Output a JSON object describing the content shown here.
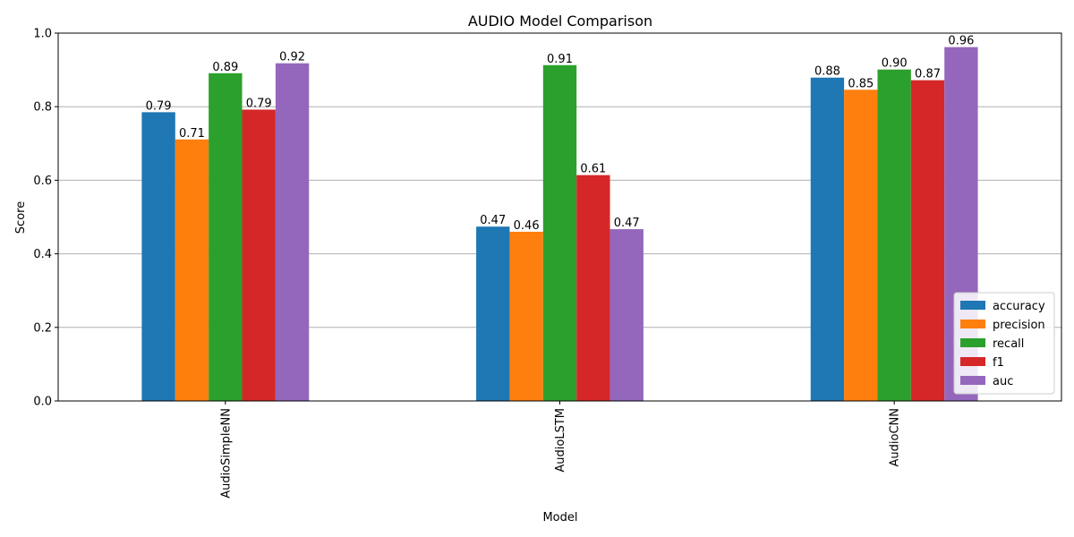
{
  "chart_data": {
    "type": "bar",
    "title": "AUDIO Model Comparison",
    "xlabel": "Model",
    "ylabel": "Score",
    "ylim": [
      0,
      1.0
    ],
    "yticks": [
      "0.0",
      "0.2",
      "0.4",
      "0.6",
      "0.8",
      "1.0"
    ],
    "grid": "y",
    "legend_placement": "lower-right",
    "categories": [
      "AudioSimpleNN",
      "AudioLSTM",
      "AudioCNN"
    ],
    "series": [
      {
        "name": "accuracy",
        "color": "#1f77b4",
        "values": [
          0.785,
          0.474,
          0.879
        ],
        "labels": [
          "0.79",
          "0.47",
          "0.88"
        ]
      },
      {
        "name": "precision",
        "color": "#ff7f0e",
        "values": [
          0.711,
          0.46,
          0.846
        ],
        "labels": [
          "0.71",
          "0.46",
          "0.85"
        ]
      },
      {
        "name": "recall",
        "color": "#2ca02c",
        "values": [
          0.891,
          0.913,
          0.901
        ],
        "labels": [
          "0.89",
          "0.91",
          "0.90"
        ]
      },
      {
        "name": "f1",
        "color": "#d62728",
        "values": [
          0.792,
          0.614,
          0.872
        ],
        "labels": [
          "0.79",
          "0.61",
          "0.87"
        ]
      },
      {
        "name": "auc",
        "color": "#9467bd",
        "values": [
          0.918,
          0.467,
          0.962
        ],
        "labels": [
          "0.92",
          "0.47",
          "0.96"
        ]
      }
    ]
  }
}
